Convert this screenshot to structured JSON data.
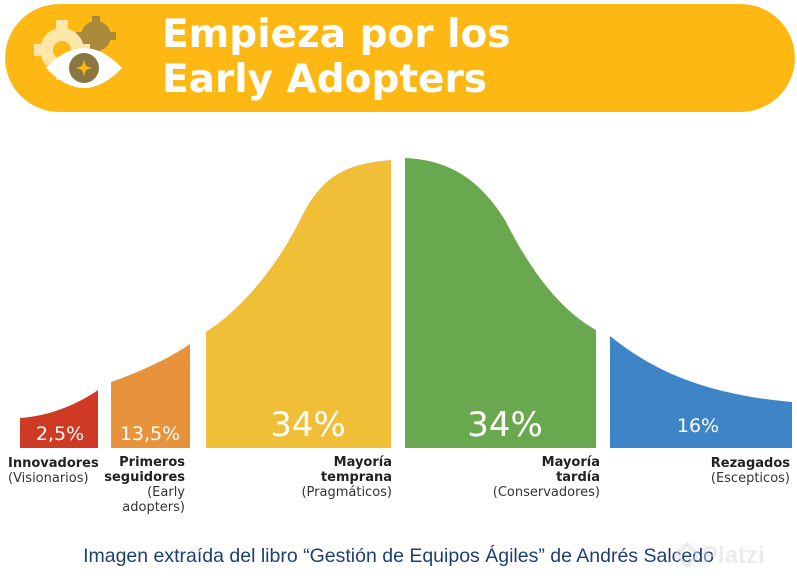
{
  "header": {
    "title_line1": "Empieza por los",
    "title_line2": "Early Adopters",
    "icon": "gears-eye-icon"
  },
  "colors": {
    "banner": "#FDB813",
    "innovators": "#CF3A25",
    "early_adopters": "#E8923B",
    "early_majority": "#F1BE38",
    "late_majority": "#6AA84F",
    "laggards": "#3D85C6",
    "caption": "#1D3F73"
  },
  "segments": [
    {
      "percent": "2,5%",
      "name": "Innovadores",
      "desc": "(Visionarios)"
    },
    {
      "percent": "13,5%",
      "name": "Primeros seguidores",
      "name_l1": "Primeros",
      "name_l2": "seguidores",
      "desc": "(Early adopters)",
      "desc_l1": "(Early",
      "desc_l2": "adopters)"
    },
    {
      "percent": "34%",
      "name": "Mayoría temprana",
      "name_l1": "Mayoría",
      "name_l2": "temprana",
      "desc": "(Pragmáticos)"
    },
    {
      "percent": "34%",
      "name": "Mayoría tardía",
      "name_l1": "Mayoría",
      "name_l2": "tardía",
      "desc": "(Conservadores)"
    },
    {
      "percent": "16%",
      "name": "Rezagados",
      "desc": "(Escepticos)"
    }
  ],
  "caption": "Imagen extraída del libro “Gestión de Equipos Ágiles” de Andrés Salcedo",
  "watermark": {
    "text": "Platzi",
    "icon": "platzi-logo-icon"
  }
}
